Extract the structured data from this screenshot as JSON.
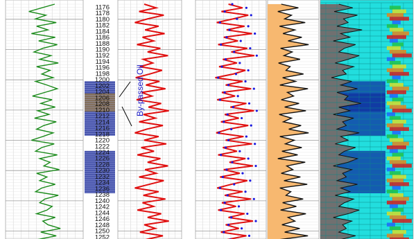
{
  "chart_data": {
    "type": "line",
    "title": "",
    "depth_range": [
      1175,
      1254
    ],
    "depth_label_step": 2,
    "annotation": {
      "text": "By-passed Oil",
      "color": "#1a1ac8"
    },
    "shaded_zones": [
      {
        "from": 1200.5,
        "to": 1218.5,
        "color": "#2a3aa0"
      },
      {
        "from": 1204.5,
        "to": 1210.5,
        "color": "#8a7048"
      },
      {
        "from": 1223.5,
        "to": 1237.5,
        "color": "#2a3aa0"
      }
    ],
    "series": [
      {
        "track": 1,
        "color": "#1a8a1a",
        "x_range": [
          0,
          150
        ],
        "values": [
          95,
          70,
          45,
          78,
          58,
          98,
          60,
          82,
          50,
          96,
          64,
          100,
          72,
          55,
          88,
          66,
          102,
          60,
          86,
          70,
          92,
          58,
          80,
          100,
          76,
          52,
          90,
          68,
          96,
          62,
          84,
          56,
          98,
          74,
          60,
          92,
          72,
          50,
          94,
          70,
          58,
          100,
          66,
          86,
          74,
          104,
          60,
          80,
          66,
          96,
          70,
          58,
          102,
          76,
          66,
          90,
          80,
          60,
          96,
          72,
          82,
          106,
          68,
          98,
          62,
          76
        ]
      },
      {
        "track": 2,
        "color": "#e01010",
        "x_range": [
          0,
          150
        ],
        "values": [
          62,
          90,
          50,
          108,
          70,
          40,
          96,
          64,
          110,
          58,
          84,
          45,
          100,
          70,
          118,
          60,
          82,
          52,
          104,
          75,
          42,
          98,
          66,
          112,
          56,
          80,
          44,
          102,
          72,
          120,
          60,
          88,
          50,
          106,
          68,
          40,
          96,
          62,
          114,
          55,
          85,
          46,
          100,
          70,
          118,
          64,
          90,
          50,
          108,
          74,
          40,
          96,
          60,
          112,
          58,
          84,
          46,
          102,
          70,
          120,
          62,
          88,
          52,
          106,
          66,
          98
        ]
      },
      {
        "track": 3,
        "color": "#e01010",
        "x_range": [
          0,
          150
        ],
        "values": [
          70,
          100,
          55,
          112,
          80,
          45,
          104,
          66,
          120,
          60,
          90,
          48,
          110,
          76,
          125,
          58,
          88,
          50,
          106,
          80,
          42,
          100,
          64,
          118,
          56,
          84,
          46,
          108,
          74,
          124,
          62,
          92,
          54,
          112,
          70,
          44,
          102,
          64,
          120,
          58,
          88,
          48,
          106,
          72,
          122,
          60,
          94,
          52,
          110,
          76,
          46,
          100,
          62,
          118,
          56,
          86,
          48,
          104,
          70,
          122,
          64,
          92,
          54,
          108,
          68,
          100
        ]
      },
      {
        "track": 3,
        "color": "#1a1ae0",
        "x_range": [
          0,
          150
        ],
        "style": "dotted",
        "values": [
          78,
          108,
          62,
          118,
          88,
          52,
          112,
          72,
          126,
          66,
          96,
          54,
          116,
          82,
          130,
          64,
          94,
          56,
          112,
          86,
          48,
          106,
          70,
          124,
          62,
          90,
          52,
          114,
          80,
          130,
          68,
          98,
          60,
          118,
          76,
          50,
          108,
          70,
          126,
          64,
          94,
          54,
          112,
          78,
          128,
          66,
          100,
          58,
          116,
          82,
          52,
          106,
          68,
          124,
          62,
          92,
          54,
          110,
          76,
          128,
          70,
          98,
          60,
          114,
          74,
          106
        ]
      },
      {
        "track": 4,
        "color": "#111111",
        "fill": "#f7b870",
        "x_range": [
          0,
          150
        ],
        "values": [
          40,
          90,
          30,
          70,
          50,
          110,
          35,
          80,
          45,
          100,
          60,
          120,
          38,
          72,
          48,
          95,
          32,
          66,
          54,
          105,
          44,
          82,
          36,
          118,
          58,
          76,
          40,
          92,
          50,
          112,
          34,
          70,
          46,
          98,
          62,
          120,
          36,
          78,
          52,
          100,
          42,
          88,
          30,
          110,
          56,
          74,
          40,
          96,
          48,
          116,
          36,
          68,
          54,
          104,
          44,
          84,
          38,
          112,
          60,
          80,
          42,
          94,
          50,
          118,
          36,
          70
        ]
      },
      {
        "track": 5,
        "color": "#111111",
        "x_range": [
          0,
          1
        ],
        "values": [
          0.2,
          0.35,
          0.15,
          0.4,
          0.25,
          0.3,
          0.18,
          0.45,
          0.22,
          0.32,
          0.14,
          0.38,
          0.26,
          0.2,
          0.42,
          0.3,
          0.16,
          0.36,
          0.24,
          0.28,
          0.12,
          0.34,
          0.22,
          0.4,
          0.18,
          0.3,
          0.26,
          0.44,
          0.2,
          0.32,
          0.14,
          0.36,
          0.24,
          0.28,
          0.18,
          0.42,
          0.22,
          0.3,
          0.16,
          0.38,
          0.26,
          0.2,
          0.4,
          0.3,
          0.14,
          0.34,
          0.24,
          0.28,
          0.18,
          0.4,
          0.22,
          0.32,
          0.16,
          0.36,
          0.26,
          0.2,
          0.42,
          0.3,
          0.14,
          0.34,
          0.24,
          0.28,
          0.2,
          0.38,
          0.22,
          0.3
        ]
      }
    ]
  }
}
